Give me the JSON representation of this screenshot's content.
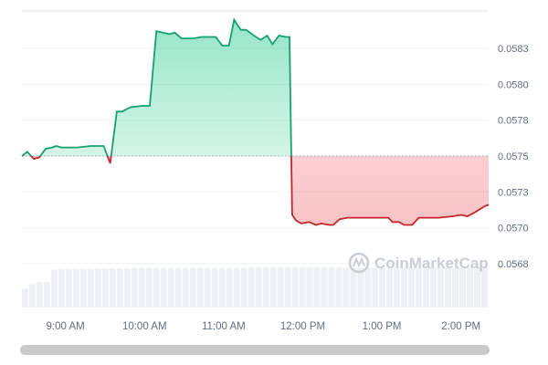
{
  "chart_data": {
    "type": "line",
    "title": "",
    "xlabel": "",
    "ylabel": "",
    "baseline": 0.0575,
    "xlim": [
      "08:27",
      "14:21"
    ],
    "ylim": [
      0.0566,
      0.05852
    ],
    "grid": true,
    "y_axis_position": "right",
    "colors": {
      "up_line": "#16a06e",
      "up_fill": "#16c784",
      "down_line": "#c1272d",
      "down_fill": "#ea3943",
      "grid": "#eff2f5",
      "volume": "#eef1f4"
    },
    "yticks": [
      {
        "value": 0.05825,
        "label": "0.0583"
      },
      {
        "value": 0.058,
        "label": "0.0580"
      },
      {
        "value": 0.05775,
        "label": "0.0578"
      },
      {
        "value": 0.0575,
        "label": "0.0575"
      },
      {
        "value": 0.05725,
        "label": "0.0573"
      },
      {
        "value": 0.057,
        "label": "0.0570"
      },
      {
        "value": 0.05675,
        "label": "0.0568"
      }
    ],
    "xticks": [
      {
        "time": "09:00",
        "label": "9:00 AM"
      },
      {
        "time": "10:00",
        "label": "10:00 AM"
      },
      {
        "time": "11:00",
        "label": "11:00 AM"
      },
      {
        "time": "12:00",
        "label": "12:00 PM"
      },
      {
        "time": "13:00",
        "label": "1:00 PM"
      },
      {
        "time": "14:00",
        "label": "2:00 PM"
      }
    ],
    "series": [
      {
        "points": [
          [
            "08:27",
            0.0575
          ],
          [
            "08:31",
            0.05753
          ],
          [
            "08:36",
            0.05748
          ],
          [
            "08:40",
            0.05749
          ],
          [
            "08:45",
            0.05755
          ],
          [
            "08:50",
            0.05756
          ],
          [
            "08:53",
            0.05757
          ],
          [
            "08:57",
            0.05756
          ],
          [
            "09:01",
            0.05756
          ],
          [
            "09:09",
            0.05756
          ],
          [
            "09:19",
            0.05757
          ],
          [
            "09:29",
            0.05757
          ],
          [
            "09:34",
            0.05745
          ],
          [
            "09:39",
            0.05781
          ],
          [
            "09:43",
            0.05781
          ],
          [
            "09:49",
            0.05784
          ],
          [
            "09:58",
            0.05785
          ],
          [
            "10:04",
            0.05785
          ],
          [
            "10:09",
            0.05837
          ],
          [
            "10:14",
            0.05836
          ],
          [
            "10:19",
            0.05835
          ],
          [
            "10:23",
            0.05836
          ],
          [
            "10:28",
            0.05832
          ],
          [
            "10:32",
            0.05832
          ],
          [
            "10:37",
            0.05832
          ],
          [
            "10:43",
            0.05833
          ],
          [
            "10:50",
            0.05833
          ],
          [
            "10:54",
            0.05833
          ],
          [
            "10:59",
            0.05827
          ],
          [
            "11:04",
            0.05827
          ],
          [
            "11:08",
            0.05845
          ],
          [
            "11:13",
            0.05838
          ],
          [
            "11:17",
            0.05838
          ],
          [
            "11:23",
            0.05834
          ],
          [
            "11:28",
            0.05831
          ],
          [
            "11:33",
            0.05834
          ],
          [
            "11:37",
            0.05828
          ],
          [
            "11:42",
            0.05834
          ],
          [
            "11:47",
            0.05833
          ],
          [
            "11:50",
            0.05833
          ],
          [
            "11:52",
            0.05709
          ],
          [
            "11:55",
            0.05705
          ],
          [
            "11:59",
            0.05703
          ],
          [
            "12:05",
            0.05704
          ],
          [
            "12:10",
            0.05702
          ],
          [
            "12:14",
            0.05703
          ],
          [
            "12:20",
            0.05702
          ],
          [
            "12:23",
            0.05702
          ],
          [
            "12:28",
            0.05706
          ],
          [
            "12:34",
            0.05707
          ],
          [
            "12:48",
            0.05707
          ],
          [
            "13:05",
            0.05707
          ],
          [
            "13:08",
            0.05704
          ],
          [
            "13:13",
            0.05704
          ],
          [
            "13:17",
            0.05702
          ],
          [
            "13:23",
            0.05702
          ],
          [
            "13:28",
            0.05707
          ],
          [
            "13:43",
            0.05707
          ],
          [
            "13:54",
            0.05708
          ],
          [
            "14:00",
            0.05709
          ],
          [
            "14:05",
            0.05708
          ],
          [
            "14:11",
            0.05711
          ],
          [
            "14:18",
            0.05715
          ],
          [
            "14:21",
            0.05716
          ]
        ]
      }
    ],
    "volume_relative": [
      0.45,
      0.55,
      0.6,
      0.6,
      0.9,
      0.92,
      0.92,
      0.92,
      0.92,
      0.92,
      0.93,
      0.93,
      0.93,
      0.93,
      0.93,
      0.94,
      0.94,
      0.94,
      0.94,
      0.94,
      0.94,
      0.94,
      0.94,
      0.94,
      0.94,
      0.94,
      0.94,
      0.94,
      0.94,
      0.94,
      0.94,
      0.95,
      0.95,
      0.95,
      0.95,
      0.95,
      0.95,
      0.95,
      0.95,
      0.95,
      0.95,
      0.95,
      0.95,
      0.95,
      0.95,
      0.95,
      0.95,
      0.95,
      0.95,
      0.95,
      0.95,
      0.95,
      0.95,
      0.95,
      0.95,
      0.95,
      0.95,
      0.95,
      0.95,
      0.95,
      0.95,
      0.95,
      0.95,
      0.95
    ]
  },
  "watermark": "CoinMarketCap"
}
